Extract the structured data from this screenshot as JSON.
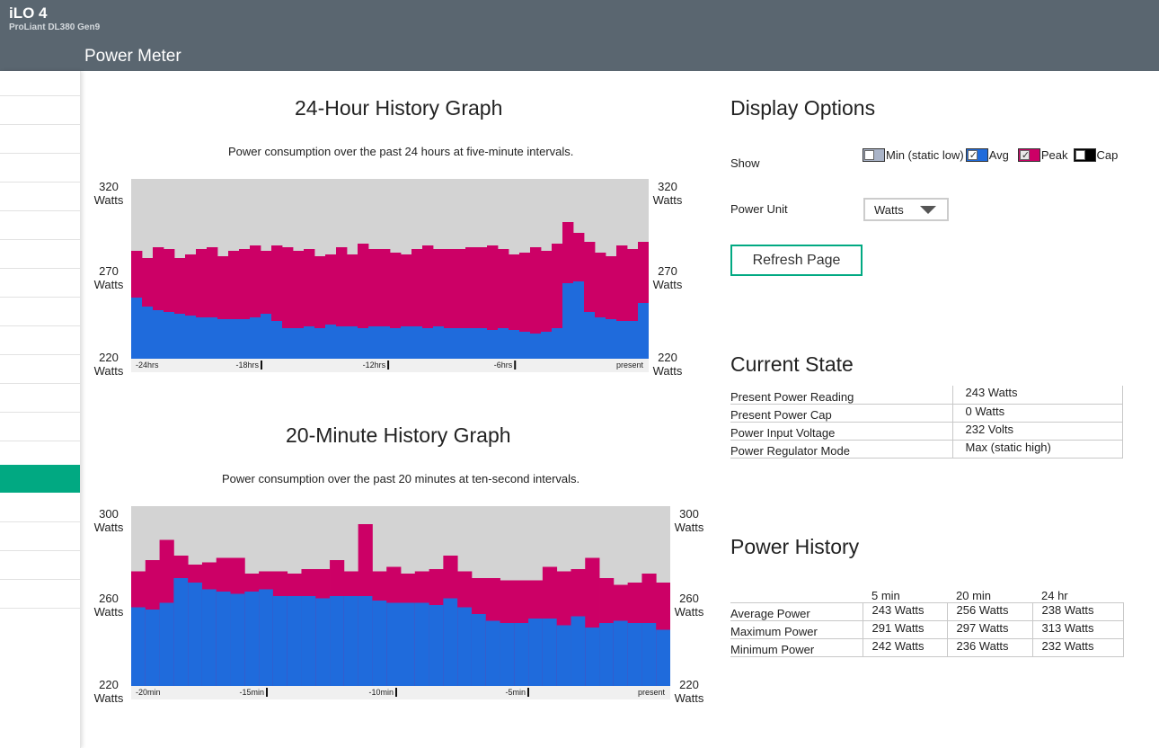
{
  "app": {
    "name": "iLO 4",
    "model": "ProLiant DL380 Gen9",
    "page_title": "Power Meter"
  },
  "colors": {
    "header": "#5a6670",
    "accent": "#01a982",
    "avg": "#1f6bdc",
    "peak": "#cc0066",
    "graph_bg": "#d3d3d3"
  },
  "graph24": {
    "title": "24-Hour History Graph",
    "subtitle": "Power consumption over the past 24 hours at five-minute intervals.",
    "y_top": "320",
    "y_mid": "270",
    "y_bot": "220",
    "unit": "Watts",
    "ticks": [
      "-24hrs",
      "-18hrs",
      "-12hrs",
      "-6hrs",
      "present"
    ]
  },
  "graph20": {
    "title": "20-Minute History Graph",
    "subtitle": "Power consumption over the past 20 minutes at ten-second intervals.",
    "y_top": "300",
    "y_mid": "260",
    "y_bot": "220",
    "unit": "Watts",
    "ticks": [
      "-20min",
      "-15min",
      "-10min",
      "-5min",
      "present"
    ]
  },
  "chart_data": [
    {
      "type": "bar",
      "title": "24-Hour History Graph",
      "ylim": [
        220,
        320
      ],
      "x_ticks": [
        "-24hrs",
        "-18hrs",
        "-12hrs",
        "-6hrs",
        "present"
      ],
      "series": [
        {
          "name": "Avg",
          "values": [
            254,
            249,
            247,
            246,
            245,
            244,
            243,
            243,
            242,
            242,
            242,
            243,
            245,
            241,
            237,
            237,
            238,
            237,
            239,
            238,
            238,
            237,
            238,
            238,
            237,
            238,
            238,
            237,
            238,
            237,
            237,
            237,
            237,
            236,
            237,
            236,
            235,
            234,
            235,
            237,
            262,
            263,
            246,
            243,
            242,
            241,
            241,
            251
          ]
        },
        {
          "name": "Peak",
          "values": [
            280,
            276,
            282,
            281,
            276,
            278,
            281,
            282,
            277,
            280,
            281,
            283,
            280,
            283,
            282,
            280,
            281,
            277,
            278,
            282,
            278,
            284,
            281,
            281,
            279,
            278,
            281,
            283,
            281,
            281,
            281,
            282,
            282,
            283,
            281,
            278,
            279,
            282,
            280,
            284,
            296,
            290,
            285,
            279,
            277,
            283,
            281,
            285
          ]
        }
      ]
    },
    {
      "type": "bar",
      "title": "20-Minute History Graph",
      "ylim": [
        220,
        300
      ],
      "x_ticks": [
        "-20min",
        "-15min",
        "-10min",
        "-5min",
        "present"
      ],
      "series": [
        {
          "name": "Avg",
          "values": [
            255,
            254,
            257,
            268,
            266,
            263,
            262,
            261,
            262,
            263,
            260,
            260,
            260,
            259,
            260,
            260,
            260,
            258,
            257,
            257,
            257,
            256,
            259,
            255,
            252,
            249,
            248,
            248,
            250,
            250,
            247,
            251,
            246,
            248,
            249,
            248,
            248,
            245
          ]
        },
        {
          "name": "Peak",
          "values": [
            271,
            276,
            285,
            278,
            274,
            275,
            277,
            277,
            270,
            271,
            271,
            270,
            272,
            272,
            276,
            271,
            292,
            271,
            273,
            270,
            271,
            272,
            278,
            271,
            268,
            268,
            267,
            267,
            267,
            273,
            271,
            272,
            277,
            268,
            265,
            266,
            270,
            266
          ]
        }
      ]
    }
  ],
  "display_options": {
    "title": "Display Options",
    "show_label": "Show",
    "legend": [
      {
        "label": "Min (static low)",
        "checked": false,
        "color": "#aab4c8"
      },
      {
        "label": "Avg",
        "checked": true,
        "color": "#1f6bdc"
      },
      {
        "label": "Peak",
        "checked": true,
        "color": "#cc0066"
      },
      {
        "label": "Cap",
        "checked": false,
        "color": "#000000"
      }
    ],
    "power_unit_label": "Power Unit",
    "power_unit_value": "Watts",
    "refresh_label": "Refresh Page"
  },
  "current_state": {
    "title": "Current State",
    "rows": [
      {
        "label": "Present Power Reading",
        "value": "243 Watts"
      },
      {
        "label": "Present Power Cap",
        "value": "0 Watts"
      },
      {
        "label": "Power Input Voltage",
        "value": "232 Volts"
      },
      {
        "label": "Power Regulator Mode",
        "value": "Max (static high)"
      }
    ]
  },
  "power_history": {
    "title": "Power History",
    "headers": [
      "5 min",
      "20 min",
      "24 hr"
    ],
    "rows": [
      {
        "label": "Average Power",
        "values": [
          "243 Watts",
          "256 Watts",
          "238 Watts"
        ]
      },
      {
        "label": "Maximum Power",
        "values": [
          "291 Watts",
          "297 Watts",
          "313 Watts"
        ]
      },
      {
        "label": "Minimum Power",
        "values": [
          "242 Watts",
          "236 Watts",
          "232 Watts"
        ]
      }
    ]
  }
}
